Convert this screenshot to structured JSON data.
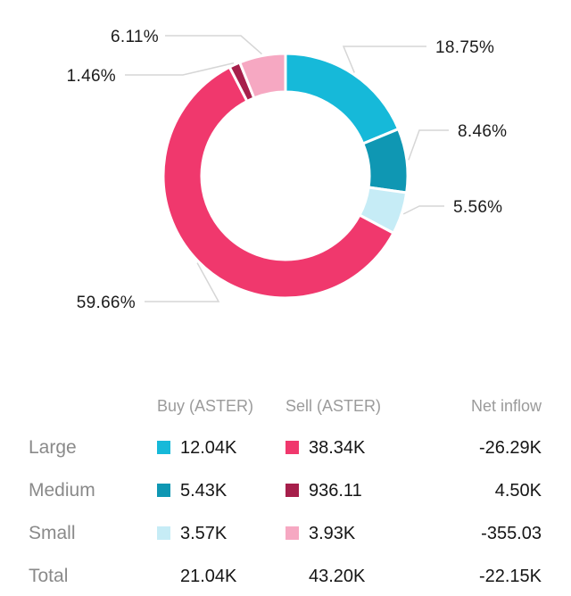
{
  "chart_data": {
    "type": "donut",
    "slices": [
      {
        "label": "18.75%",
        "value": 18.75,
        "color": "#16b9d9",
        "category": "Large Buy"
      },
      {
        "label": "8.46%",
        "value": 8.46,
        "color": "#0f97b3",
        "category": "Medium Buy"
      },
      {
        "label": "5.56%",
        "value": 5.56,
        "color": "#c6ecf6",
        "category": "Small Buy"
      },
      {
        "label": "59.66%",
        "value": 59.66,
        "color": "#f0386d",
        "category": "Large Sell"
      },
      {
        "label": "1.46%",
        "value": 1.46,
        "color": "#a61f4b",
        "category": "Medium Sell"
      },
      {
        "label": "6.11%",
        "value": 6.11,
        "color": "#f6a8c2",
        "category": "Small Sell"
      }
    ]
  },
  "table": {
    "headers": {
      "buy": "Buy (ASTER)",
      "sell": "Sell (ASTER)",
      "net": "Net inflow"
    },
    "rows": [
      {
        "name": "Large",
        "buy": "12.04K",
        "sell": "38.34K",
        "net": "-26.29K",
        "buy_color": "#16b9d9",
        "sell_color": "#f0386d"
      },
      {
        "name": "Medium",
        "buy": "5.43K",
        "sell": "936.11",
        "net": "4.50K",
        "buy_color": "#0f97b3",
        "sell_color": "#a61f4b"
      },
      {
        "name": "Small",
        "buy": "3.57K",
        "sell": "3.93K",
        "net": "-355.03",
        "buy_color": "#c6ecf6",
        "sell_color": "#f6a8c2"
      }
    ],
    "total": {
      "name": "Total",
      "buy": "21.04K",
      "sell": "43.20K",
      "net": "-22.15K"
    }
  }
}
